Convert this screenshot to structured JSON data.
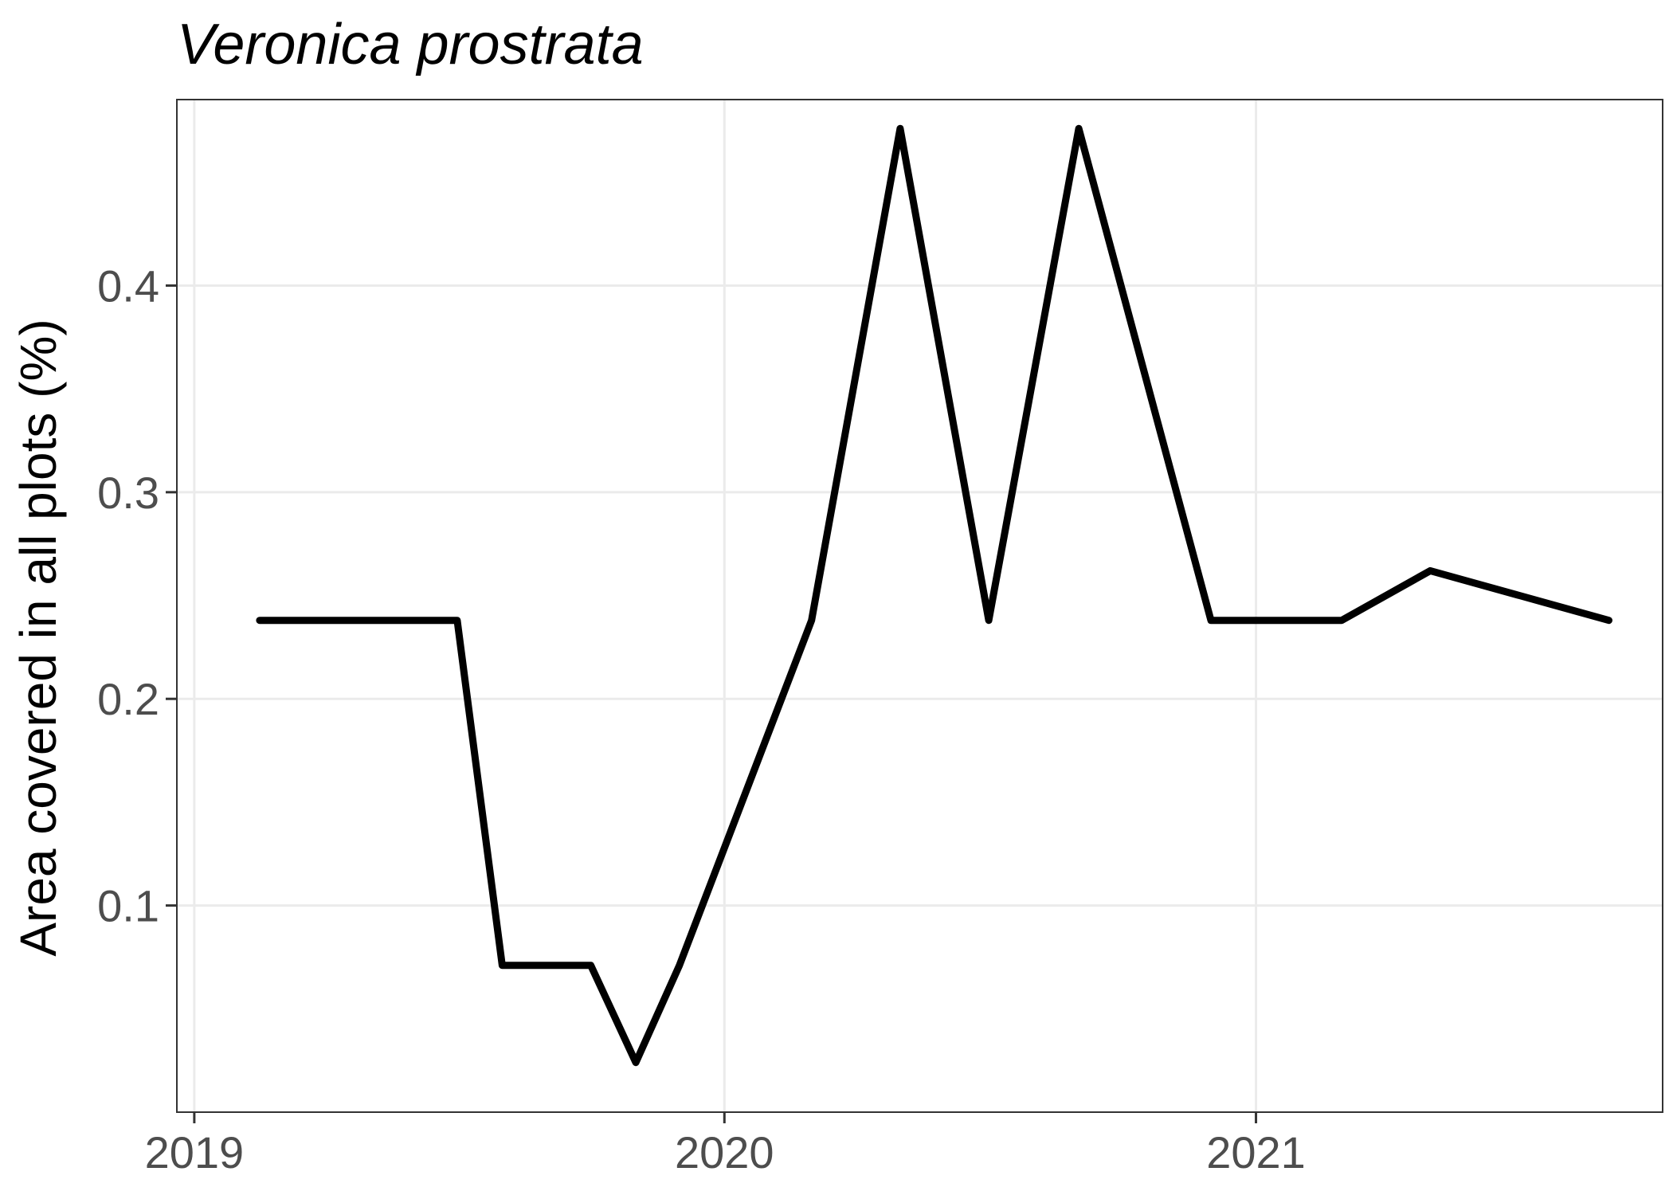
{
  "chart_data": {
    "type": "line",
    "title": "Veronica prostrata",
    "xlabel": "",
    "ylabel": "Area covered in all plots (%)",
    "x_axis_type": "date",
    "xlim": [
      "2018-12-20",
      "2021-10-08"
    ],
    "ylim": [
      0.0,
      0.49
    ],
    "x_ticks": [
      {
        "value": "2019-01-01",
        "label": "2019"
      },
      {
        "value": "2020-01-01",
        "label": "2020"
      },
      {
        "value": "2021-01-01",
        "label": "2021"
      }
    ],
    "y_ticks": [
      {
        "value": 0.1,
        "label": "0.1"
      },
      {
        "value": 0.2,
        "label": "0.2"
      },
      {
        "value": 0.3,
        "label": "0.3"
      },
      {
        "value": 0.4,
        "label": "0.4"
      }
    ],
    "grid": true,
    "legend": "none",
    "series": [
      {
        "color": "#000000",
        "points": [
          {
            "x": "2019-02-15",
            "y": 0.238
          },
          {
            "x": "2019-07-01",
            "y": 0.238
          },
          {
            "x": "2019-08-01",
            "y": 0.071
          },
          {
            "x": "2019-10-01",
            "y": 0.071
          },
          {
            "x": "2019-11-01",
            "y": 0.024
          },
          {
            "x": "2019-12-01",
            "y": 0.071
          },
          {
            "x": "2020-03-01",
            "y": 0.238
          },
          {
            "x": "2020-05-01",
            "y": 0.476
          },
          {
            "x": "2020-07-01",
            "y": 0.238
          },
          {
            "x": "2020-09-01",
            "y": 0.476
          },
          {
            "x": "2020-12-01",
            "y": 0.238
          },
          {
            "x": "2021-03-01",
            "y": 0.238
          },
          {
            "x": "2021-05-01",
            "y": 0.262
          },
          {
            "x": "2021-09-01",
            "y": 0.238
          }
        ]
      }
    ]
  },
  "style": {
    "line_color": "#000000",
    "grid_color": "#ebebeb",
    "panel_border_color": "#333333",
    "tick_label_color": "#4d4d4d",
    "background": "#ffffff"
  }
}
